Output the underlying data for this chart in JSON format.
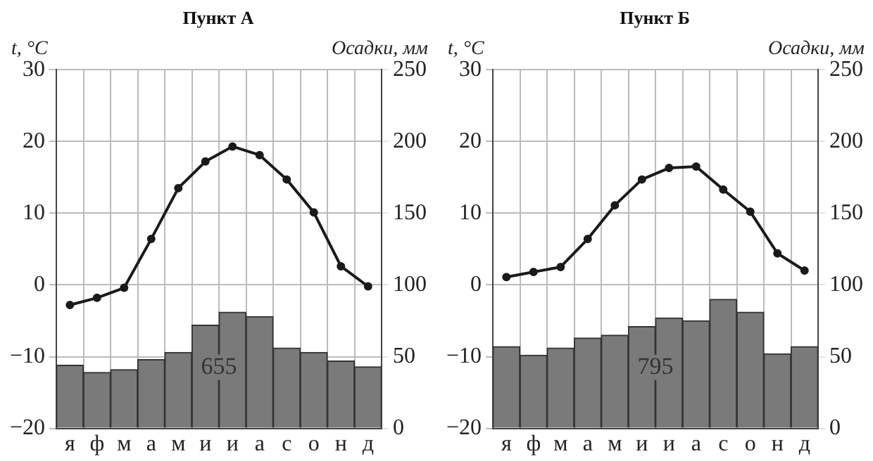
{
  "chart_data": [
    {
      "type": "bar",
      "title": "Пункт А",
      "ylabel": "t, °C",
      "y2label": "Осадки, мм",
      "categories": [
        "я",
        "ф",
        "м",
        "а",
        "м",
        "и",
        "и",
        "а",
        "с",
        "о",
        "н",
        "д"
      ],
      "series": [
        {
          "axis": "y2",
          "color": "#7a7a7a",
          "values": [
            44,
            39,
            41,
            48,
            53,
            72,
            81,
            78,
            56,
            53,
            47,
            43
          ]
        },
        {
          "type": "line",
          "axis": "y",
          "color": "#1a1a1a",
          "values": [
            -2.8,
            -1.8,
            -0.4,
            6.4,
            13.5,
            17.2,
            19.3,
            18.1,
            14.7,
            10.1,
            2.6,
            -0.2
          ]
        }
      ],
      "ylim": [
        -20,
        30
      ],
      "yticks": [
        -20,
        -10,
        0,
        10,
        20,
        30
      ],
      "y2lim": [
        0,
        250
      ],
      "y2ticks": [
        0,
        50,
        100,
        150,
        200,
        250
      ],
      "grid": true,
      "marker": "circle",
      "annotations": [
        "655"
      ]
    },
    {
      "type": "bar",
      "title": "Пункт Б",
      "ylabel": "t, °C",
      "y2label": "Осадки, мм",
      "categories": [
        "я",
        "ф",
        "м",
        "а",
        "м",
        "и",
        "и",
        "а",
        "с",
        "о",
        "н",
        "д"
      ],
      "series": [
        {
          "axis": "y2",
          "color": "#7a7a7a",
          "values": [
            57,
            51,
            56,
            63,
            65,
            71,
            77,
            75,
            90,
            81,
            52,
            57
          ]
        },
        {
          "type": "line",
          "axis": "y",
          "color": "#1a1a1a",
          "values": [
            1.1,
            1.8,
            2.5,
            6.4,
            11.1,
            14.7,
            16.3,
            16.5,
            13.3,
            10.2,
            4.4,
            2.0
          ]
        }
      ],
      "ylim": [
        -20,
        30
      ],
      "yticks": [
        -20,
        -10,
        0,
        10,
        20,
        30
      ],
      "y2lim": [
        0,
        250
      ],
      "y2ticks": [
        0,
        50,
        100,
        150,
        200,
        250
      ],
      "grid": true,
      "marker": "circle",
      "annotations": [
        "795"
      ]
    }
  ]
}
